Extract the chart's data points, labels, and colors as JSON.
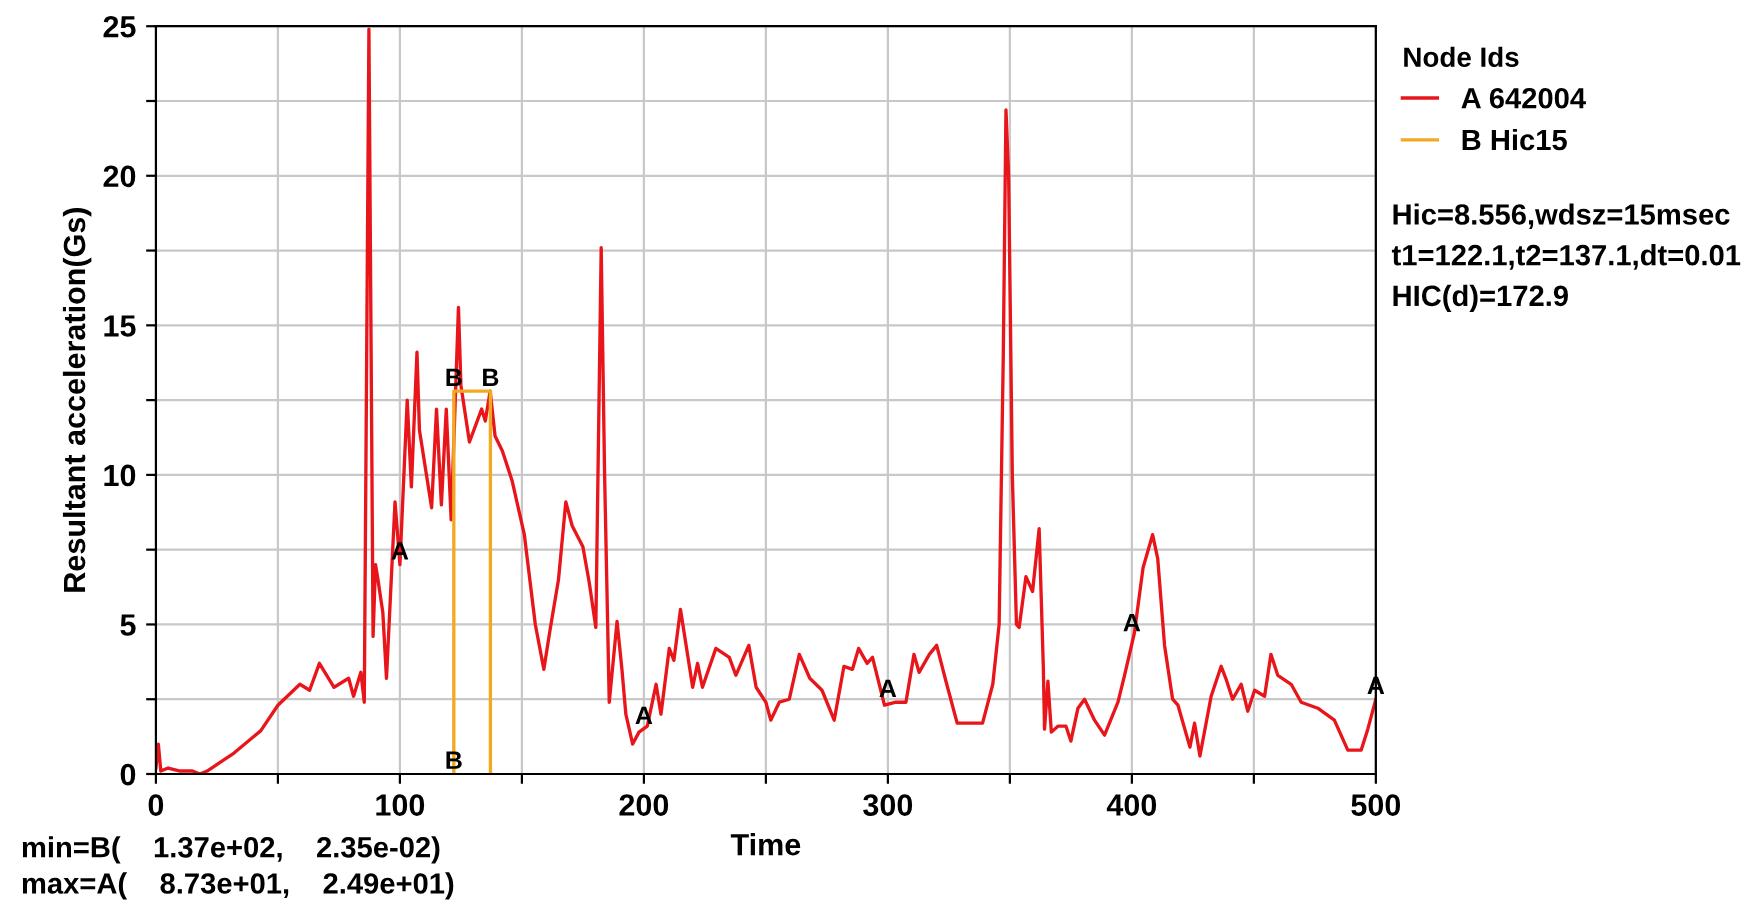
{
  "chart_data": {
    "type": "line",
    "xlabel": "Time",
    "ylabel": "Resultant acceleration(Gs)",
    "legend_title": "Node Ids",
    "legend": "right",
    "grid": true,
    "marker": "none",
    "line_style": "solid",
    "xlim": [
      0,
      500
    ],
    "ylim": [
      0,
      25
    ],
    "xticks": [
      0,
      {
        "value": 50,
        "label": null
      },
      100,
      {
        "value": 150,
        "label": null
      },
      200,
      {
        "value": 250,
        "label": null
      },
      300,
      {
        "value": 350,
        "label": null
      },
      400,
      {
        "value": 450,
        "label": null
      },
      500
    ],
    "yticks": [
      0,
      {
        "value": 2.5,
        "label": null
      },
      5,
      {
        "value": 7.5,
        "label": null
      },
      10,
      {
        "value": 12.5,
        "label": null
      },
      15,
      {
        "value": 17.5,
        "label": null
      },
      20,
      {
        "value": 22.5,
        "label": null
      },
      25
    ],
    "series": [
      {
        "name": "A 642004",
        "color": "#e8161b",
        "x": [
          0,
          1,
          2,
          5,
          10,
          15,
          18,
          21,
          32,
          43,
          50,
          59,
          63,
          67,
          73,
          79,
          81,
          84,
          85.4,
          87.3,
          89,
          90,
          91,
          93,
          94.5,
          98,
          100,
          103,
          104.7,
          107,
          108,
          113,
          115,
          117,
          119,
          121,
          124,
          125,
          128.5,
          133.5,
          135,
          137,
          139,
          142,
          146,
          151,
          155.5,
          159,
          161.5,
          165,
          168,
          170.6,
          175,
          177.6,
          180.3,
          182.5,
          183.9,
          185.8,
          189,
          191,
          192.6,
          195.4,
          198,
          201.4,
          205,
          207,
          210.4,
          212.3,
          215,
          220,
          222,
          224,
          229.5,
          235,
          237.7,
          243,
          246,
          250,
          252,
          255.5,
          259.6,
          263.7,
          268,
          273,
          278,
          282,
          285.5,
          288,
          291.5,
          293.7,
          298.6,
          303.3,
          307.4,
          310.7,
          312.8,
          317,
          320,
          323.8,
          328.4,
          332,
          338.8,
          343,
          345.6,
          347.3,
          348.4,
          349.5,
          351,
          352.7,
          353.8,
          356.6,
          359.3,
          362,
          363.7,
          364.2,
          365.6,
          367,
          369.7,
          373,
          375,
          377.9,
          380.6,
          384.7,
          388.8,
          394.3,
          397,
          401,
          404.6,
          408.5,
          410.6,
          413.4,
          416.7,
          418.9,
          423.8,
          425.7,
          427.9,
          432.5,
          436.6,
          438.5,
          441.3,
          444.8,
          447.5,
          450.3,
          454.4,
          457,
          459.8,
          465.3,
          469.4,
          476.2,
          483,
          488.5,
          494,
          496.7,
          500
        ],
        "values": [
          0.2,
          1.0,
          0.1,
          0.2,
          0.1,
          0.1,
          0,
          0.1,
          0.7,
          1.45,
          2.3,
          3.0,
          2.8,
          3.7,
          2.9,
          3.2,
          2.6,
          3.4,
          2.4,
          24.9,
          4.6,
          7.0,
          6.5,
          5.4,
          3.2,
          9.1,
          7.0,
          12.5,
          9.6,
          14.1,
          11.5,
          8.9,
          12.2,
          9.0,
          12.2,
          8.5,
          15.6,
          13.0,
          11.1,
          12.2,
          11.8,
          12.8,
          11.3,
          10.8,
          9.8,
          8.0,
          5.0,
          3.5,
          4.8,
          6.5,
          9.1,
          8.3,
          7.6,
          6.4,
          4.9,
          17.6,
          10,
          2.4,
          5.1,
          3.5,
          2.0,
          1.0,
          1.4,
          1.6,
          3.0,
          2.0,
          4.2,
          3.8,
          5.5,
          2.9,
          3.7,
          2.9,
          4.2,
          3.9,
          3.3,
          4.3,
          2.9,
          2.4,
          1.8,
          2.4,
          2.5,
          4.0,
          3.2,
          2.8,
          1.8,
          3.6,
          3.5,
          4.2,
          3.7,
          3.9,
          2.3,
          2.4,
          2.4,
          4.0,
          3.4,
          4.0,
          4.3,
          3.1,
          1.7,
          1.7,
          1.7,
          3.0,
          5.0,
          14,
          22.2,
          20,
          10,
          5.0,
          4.9,
          6.6,
          6.1,
          8.2,
          3.6,
          1.5,
          3.1,
          1.4,
          1.6,
          1.6,
          1.1,
          2.2,
          2.5,
          1.8,
          1.3,
          2.4,
          3.3,
          4.7,
          6.9,
          8.0,
          7.2,
          4.3,
          2.5,
          2.3,
          0.9,
          1.7,
          0.6,
          2.6,
          3.6,
          3.2,
          2.5,
          3.0,
          2.1,
          2.8,
          2.6,
          4.0,
          3.3,
          3.0,
          2.4,
          2.2,
          1.8,
          0.8,
          0.8,
          1.5,
          2.5
        ]
      },
      {
        "name": "B Hic15",
        "color": "#f2a922",
        "x": [
          122.1,
          122.1,
          137.1,
          137.1
        ],
        "values": [
          0,
          12.8,
          12.8,
          0
        ]
      }
    ],
    "annotations": [
      "Hic=8.556,wdsz=15msec",
      "t1=122.1,t2=137.1,dt=0.01",
      "HIC(d)=172.9",
      "min=B(    1.37e+02,    2.35e-02)",
      "max=A(    8.73e+01,    2.49e+01)",
      {
        "text": "A",
        "x": 100,
        "y": 7.0
      },
      {
        "text": "A",
        "x": 200,
        "y": 1.5
      },
      {
        "text": "A",
        "x": 300,
        "y": 2.4
      },
      {
        "text": "A",
        "x": 400,
        "y": 4.6
      },
      {
        "text": "A",
        "x": 500,
        "y": 2.5
      },
      {
        "text": "B",
        "x": 122.1,
        "y": 12.8
      },
      {
        "text": "B",
        "x": 137.1,
        "y": 12.8
      },
      {
        "text": "B",
        "x": 122.1,
        "y": 0
      }
    ]
  }
}
